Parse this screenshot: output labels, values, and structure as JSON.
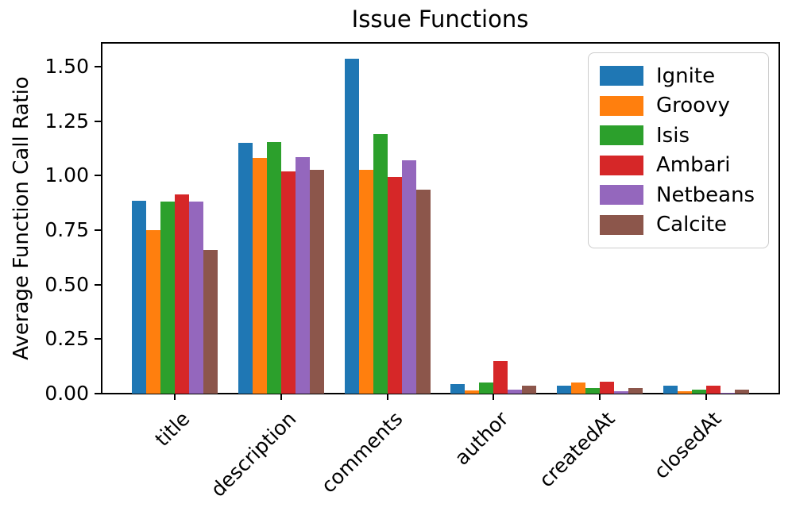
{
  "chart_data": {
    "type": "bar",
    "title": "Issue Functions",
    "xlabel": "",
    "ylabel": "Average Function Call Ratio",
    "categories": [
      "title",
      "description",
      "comments",
      "author",
      "createdAt",
      "closedAt"
    ],
    "series": [
      {
        "name": "Ignite",
        "color": "#1f77b4",
        "values": [
          0.885,
          1.15,
          1.535,
          0.045,
          0.035,
          0.035
        ]
      },
      {
        "name": "Groovy",
        "color": "#ff7f0e",
        "values": [
          0.75,
          1.08,
          1.025,
          0.015,
          0.05,
          0.012
        ]
      },
      {
        "name": "Isis",
        "color": "#2ca02c",
        "values": [
          0.88,
          1.155,
          1.19,
          0.05,
          0.025,
          0.018
        ]
      },
      {
        "name": "Ambari",
        "color": "#d62728",
        "values": [
          0.915,
          1.02,
          0.995,
          0.15,
          0.055,
          0.035
        ]
      },
      {
        "name": "Netbeans",
        "color": "#9467bd",
        "values": [
          0.88,
          1.085,
          1.07,
          0.02,
          0.01,
          0.004
        ]
      },
      {
        "name": "Calcite",
        "color": "#8c564b",
        "values": [
          0.66,
          1.025,
          0.935,
          0.035,
          0.025,
          0.018
        ]
      }
    ],
    "yticks": [
      "0.00",
      "0.25",
      "0.50",
      "0.75",
      "1.00",
      "1.25",
      "1.50"
    ],
    "ylim": [
      0,
      1.613
    ],
    "grid": false,
    "legend_position": "upper right",
    "axis_color": "#000000"
  }
}
